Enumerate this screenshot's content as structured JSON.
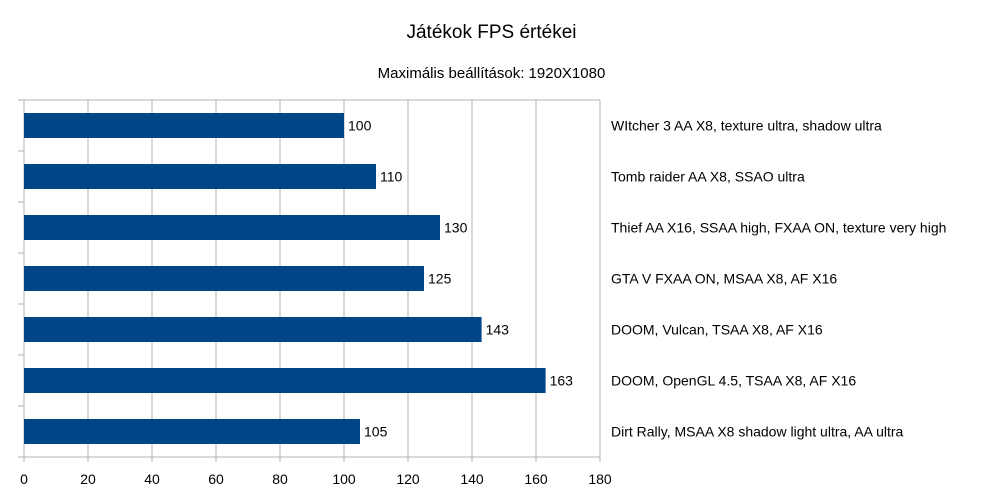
{
  "chart_data": {
    "type": "bar",
    "orientation": "horizontal",
    "title": "Játékok FPS értékei",
    "subtitle": "Maximális beállítások: 1920X1080",
    "categories": [
      "WItcher 3 AA X8, texture ultra, shadow ultra",
      "Tomb raider AA X8, SSAO ultra",
      "Thief AA X16, SSAA high, FXAA ON, texture very high",
      "GTA V FXAA ON, MSAA X8, AF X16",
      "DOOM, Vulcan, TSAA X8, AF X16",
      "DOOM, OpenGL 4.5, TSAA X8, AF X16",
      "Dirt Rally, MSAA X8 shadow light ultra, AA ultra"
    ],
    "values": [
      100,
      110,
      130,
      125,
      143,
      163,
      105
    ],
    "xlim": [
      0,
      180
    ],
    "xticks": [
      0,
      20,
      40,
      60,
      80,
      100,
      120,
      140,
      160,
      180
    ],
    "grid": "vertical",
    "category_labels_position": "right",
    "bar_color": "#004586",
    "data_labels": true
  }
}
